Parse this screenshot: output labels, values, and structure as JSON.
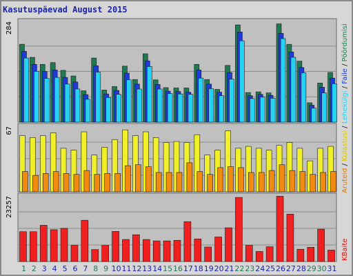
{
  "chart_data": {
    "title": "Kasutuspäevad August 2015",
    "type": "bar",
    "categories": [
      "1",
      "2",
      "3",
      "4",
      "5",
      "6",
      "7",
      "8",
      "9",
      "10",
      "11",
      "12",
      "13",
      "14",
      "15",
      "16",
      "17",
      "18",
      "19",
      "20",
      "21",
      "22",
      "23",
      "24",
      "25",
      "26",
      "27",
      "28",
      "29",
      "30",
      "31"
    ],
    "weekend_days": [
      "1",
      "2",
      "8",
      "9",
      "15",
      "16",
      "22",
      "23",
      "29",
      "30"
    ],
    "panels": [
      {
        "id": "top",
        "scale_label": "284",
        "ymax": 284,
        "series": [
          {
            "name": "Pöördumisi",
            "color": "#1f7a52",
            "values": [
              221,
              184,
              164,
              169,
              147,
              131,
              89,
              182,
              91,
              101,
              159,
              121,
              194,
              120,
              98,
              97,
              97,
              164,
              121,
              93,
              161,
              276,
              84,
              86,
              83,
              279,
              221,
              173,
              55,
              111,
              141
            ]
          },
          {
            "name": "Faile",
            "color": "#1d3bd6",
            "values": [
              201,
              164,
              144,
              148,
              127,
              114,
              78,
              160,
              80,
              90,
              139,
              108,
              174,
              107,
              88,
              87,
              85,
              148,
              108,
              85,
              141,
              256,
              75,
              79,
              76,
              252,
              199,
              155,
              48,
              99,
              125
            ]
          },
          {
            "name": "Lehekülgi",
            "color": "#26d2f3",
            "values": [
              182,
              144,
              124,
              127,
              108,
              94,
              65,
              142,
              70,
              79,
              120,
              94,
              158,
              94,
              81,
              80,
              79,
              125,
              95,
              75,
              122,
              231,
              67,
              71,
              68,
              237,
              184,
              140,
              40,
              83,
              109
            ]
          }
        ]
      },
      {
        "id": "mid",
        "scale_label": "67",
        "ymax": 67,
        "series": [
          {
            "name": "Külastusi",
            "color": "#f0f02a",
            "values": [
              58,
              56,
              58,
              61,
              45,
              43,
              62,
              38,
              46,
              54,
              64,
              58,
              62,
              56,
              51,
              52,
              51,
              59,
              38,
              43,
              63,
              45,
              47,
              45,
              43,
              48,
              51,
              45,
              32,
              45,
              47
            ]
          },
          {
            "name": "Aruteid",
            "color": "#f08a10",
            "values": [
              21,
              17,
              19,
              21,
              19,
              18,
              22,
              18,
              19,
              19,
              27,
              28,
              26,
              20,
              20,
              20,
              30,
              21,
              18,
              25,
              26,
              25,
              20,
              20,
              22,
              28,
              22,
              21,
              18,
              20,
              21
            ]
          }
        ]
      },
      {
        "id": "bot",
        "scale_label": "23257",
        "ymax": 23257,
        "series": [
          {
            "name": "KBaite",
            "color": "#f02020",
            "values": [
              10700,
              10700,
              13000,
              11400,
              11900,
              5800,
              14800,
              4300,
              5800,
              10800,
              7900,
              9600,
              7900,
              7400,
              7400,
              7600,
              14300,
              8100,
              5200,
              8800,
              12100,
              23000,
              5800,
              3600,
              5300,
              23400,
              17000,
              4400,
              5100,
              11600,
              4100
            ]
          }
        ]
      }
    ],
    "right_legend": [
      {
        "text": "Pöördumisi",
        "color": "#1f7a52"
      },
      {
        "text": "Faile",
        "color": "#1d3bd6"
      },
      {
        "text": "Lehekülgi",
        "color": "#26d2f3"
      },
      {
        "text": "Külastusi",
        "color": "#d8c800"
      },
      {
        "text": "Aruteid",
        "color": "#e07a00"
      },
      {
        "text": "KBaite",
        "color": "#e01010"
      }
    ],
    "weekday_color": "#1b22b0",
    "weekend_color": "#1f7a52"
  }
}
